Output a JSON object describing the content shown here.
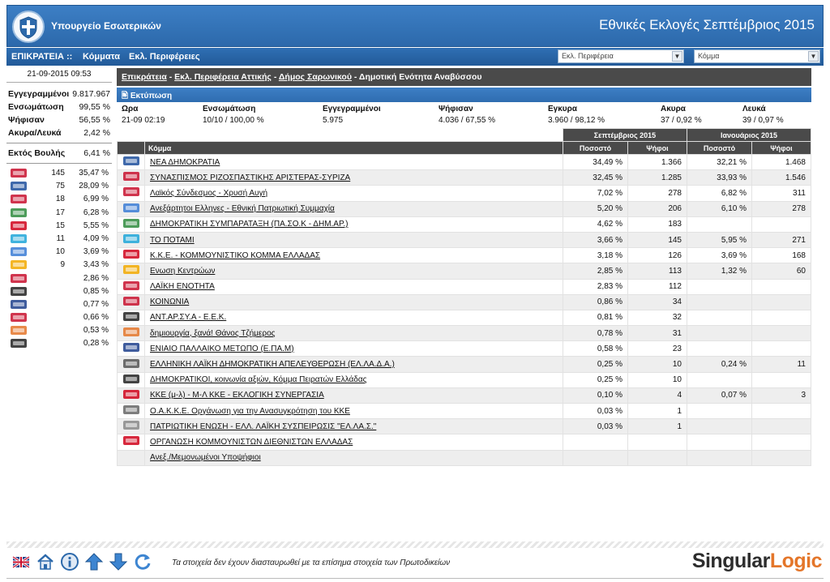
{
  "header": {
    "ministry": "Υπουργείο Εσωτερικών",
    "title": "Εθνικές Εκλογές Σεπτέμβριος 2015"
  },
  "nav": {
    "items": [
      "ΕΠΙΚΡΑΤΕΙΑ ::",
      "Κόμματα",
      "Εκλ. Περιφέρειες"
    ],
    "select_region": "Εκλ. Περιφέρεια",
    "select_party": "Κόμμα"
  },
  "left": {
    "datetime": "21-09-2015 09:53",
    "stats": [
      {
        "label": "Εγγεγραμμένοι",
        "value": "9.817.967"
      },
      {
        "label": "Ενσωμάτωση",
        "value": "99,55 %"
      },
      {
        "label": "Ψήφισαν",
        "value": "56,55 %"
      },
      {
        "label": "Ακυρα/Λευκά",
        "value": "2,42 %"
      }
    ],
    "outside": {
      "label": "Εκτός Βουλής",
      "value": "6,41 %"
    },
    "seats": [
      {
        "icon": "syriza-logo-icon",
        "seats": "145",
        "pct": "35,47 %",
        "color": "#c8102e"
      },
      {
        "icon": "nd-logo-icon",
        "seats": "75",
        "pct": "28,09 %",
        "color": "#1d4f9c"
      },
      {
        "icon": "xa-logo-icon",
        "seats": "18",
        "pct": "6,99 %",
        "color": "#c8102e"
      },
      {
        "icon": "dimar-pasok-logo-icon",
        "seats": "17",
        "pct": "6,28 %",
        "color": "#2e8b3d"
      },
      {
        "icon": "kke-logo-icon",
        "seats": "15",
        "pct": "5,55 %",
        "color": "#d0021b"
      },
      {
        "icon": "potami-logo-icon",
        "seats": "11",
        "pct": "4,09 %",
        "color": "#1fa6d8"
      },
      {
        "icon": "anel-logo-icon",
        "seats": "10",
        "pct": "3,69 %",
        "color": "#3a7bd5"
      },
      {
        "icon": "enosi-kentroon-logo-icon",
        "seats": "9",
        "pct": "3,43 %",
        "color": "#f2a900"
      },
      {
        "icon": "laiki-enotita-logo-icon",
        "seats": "",
        "pct": "2,86 %",
        "color": "#c8102e"
      },
      {
        "icon": "antarsya-logo-icon",
        "seats": "",
        "pct": "0,85 %",
        "color": "#222222"
      },
      {
        "icon": "epam-logo-icon",
        "seats": "",
        "pct": "0,77 %",
        "color": "#1d3f8c"
      },
      {
        "icon": "koinonia-logo-icon",
        "seats": "",
        "pct": "0,66 %",
        "color": "#c8102e"
      },
      {
        "icon": "dimiourgia-logo-icon",
        "seats": "",
        "pct": "0,53 %",
        "color": "#e4762a"
      },
      {
        "icon": "dimokratikoi-logo-icon",
        "seats": "",
        "pct": "0,28 %",
        "color": "#222222"
      }
    ]
  },
  "main": {
    "breadcrumb": {
      "l1": "Επικράτεια",
      "l2": "Εκλ. Περιφέρεια Αττικής",
      "l3": "Δήμος Σαρωνικού",
      "current": "Δημοτική Ενότητα Αναβύσσου"
    },
    "print": "Εκτύπωση",
    "summary": {
      "headers": [
        "Ωρα",
        "Ενσωμάτωση",
        "Εγγεγραμμένοι",
        "Ψήφισαν",
        "Εγκυρα",
        "Ακυρα",
        "Λευκά"
      ],
      "values": [
        "21-09 02:19",
        "10/10 / 100,00 %",
        "5.975",
        "4.036 / 67,55 %",
        "3.960 / 98,12 %",
        "37 / 0,92 %",
        "39 / 0,97 %"
      ]
    },
    "table": {
      "group_sep": "Σεπτέμβριος 2015",
      "group_jan": "Ιανουάριος 2015",
      "col_party": "Κόμμα",
      "col_pct": "Ποσοστό",
      "col_votes": "Ψήφοι",
      "rows": [
        {
          "icon": "nd-logo-icon",
          "color": "#1d4f9c",
          "name": "ΝΕΑ ΔΗΜΟΚΡΑΤΙΑ",
          "sep_pct": "34,49 %",
          "sep_votes": "1.366",
          "jan_pct": "32,21 %",
          "jan_votes": "1.468"
        },
        {
          "icon": "syriza-logo-icon",
          "color": "#c8102e",
          "name": "ΣΥΝΑΣΠΙΣΜΟΣ ΡΙΖΟΣΠΑΣΤΙΚΗΣ ΑΡΙΣΤΕΡΑΣ-ΣΥΡΙΖΑ",
          "sep_pct": "32,45 %",
          "sep_votes": "1.285",
          "jan_pct": "33,93 %",
          "jan_votes": "1.546"
        },
        {
          "icon": "xa-logo-icon",
          "color": "#c8102e",
          "name": "Λαϊκός Σύνδεσμος - Χρυσή Αυγή",
          "sep_pct": "7,02 %",
          "sep_votes": "278",
          "jan_pct": "6,82 %",
          "jan_votes": "311"
        },
        {
          "icon": "anel-logo-icon",
          "color": "#3a7bd5",
          "name": "Ανεξάρτητοι Ελληνες - Εθνική Πατριωτική Συμμαχία",
          "sep_pct": "5,20 %",
          "sep_votes": "206",
          "jan_pct": "6,10 %",
          "jan_votes": "278"
        },
        {
          "icon": "dimar-pasok-logo-icon",
          "color": "#2e8b3d",
          "name": "ΔΗΜΟΚΡΑΤΙΚΗ ΣΥΜΠΑΡΑΤΑΞΗ (ΠΑ.ΣΟ.Κ - ΔΗΜ.ΑΡ.)",
          "sep_pct": "4,62 %",
          "sep_votes": "183",
          "jan_pct": "",
          "jan_votes": ""
        },
        {
          "icon": "potami-logo-icon",
          "color": "#1fa6d8",
          "name": "ΤΟ ΠΟΤΑΜΙ",
          "sep_pct": "3,66 %",
          "sep_votes": "145",
          "jan_pct": "5,95 %",
          "jan_votes": "271"
        },
        {
          "icon": "kke-logo-icon",
          "color": "#d0021b",
          "name": "Κ.Κ.Ε. - ΚΟΜΜΟΥΝΙΣΤΙΚΟ ΚΟΜΜΑ ΕΛΛΑΔΑΣ",
          "sep_pct": "3,18 %",
          "sep_votes": "126",
          "jan_pct": "3,69 %",
          "jan_votes": "168"
        },
        {
          "icon": "enosi-kentroon-logo-icon",
          "color": "#f2a900",
          "name": "Ενωση Κεντρώων",
          "sep_pct": "2,85 %",
          "sep_votes": "113",
          "jan_pct": "1,32 %",
          "jan_votes": "60"
        },
        {
          "icon": "laiki-enotita-logo-icon",
          "color": "#c8102e",
          "name": "ΛΑΪΚΗ ΕΝΟΤΗΤΑ",
          "sep_pct": "2,83 %",
          "sep_votes": "112",
          "jan_pct": "",
          "jan_votes": ""
        },
        {
          "icon": "koinonia-logo-icon",
          "color": "#c8102e",
          "name": "ΚΟΙΝΩΝΙΑ",
          "sep_pct": "0,86 %",
          "sep_votes": "34",
          "jan_pct": "",
          "jan_votes": ""
        },
        {
          "icon": "antarsya-logo-icon",
          "color": "#222222",
          "name": "ΑΝΤ.ΑΡ.ΣΥ.Α - Ε.Ε.Κ.",
          "sep_pct": "0,81 %",
          "sep_votes": "32",
          "jan_pct": "",
          "jan_votes": ""
        },
        {
          "icon": "dimiourgia-logo-icon",
          "color": "#e4762a",
          "name": "δημιουργία, ξανά! Θάνος Τζήμερος",
          "sep_pct": "0,78 %",
          "sep_votes": "31",
          "jan_pct": "",
          "jan_votes": ""
        },
        {
          "icon": "epam-logo-icon",
          "color": "#1d3f8c",
          "name": "ΕΝΙΑΙΟ ΠΑΛΛΑΙΚΟ ΜΕΤΩΠΟ (Ε.ΠΑ.Μ)",
          "sep_pct": "0,58 %",
          "sep_votes": "23",
          "jan_pct": "",
          "jan_votes": ""
        },
        {
          "icon": "elada-logo-icon",
          "color": "#555555",
          "name": "ΕΛΛΗΝΙΚΗ ΛΑΪΚΗ ΔΗΜΟΚΡΑΤΙΚΗ ΑΠΕΛΕΥΘΕΡΩΣΗ (ΕΛ.ΛΑ.Δ.Α.)",
          "sep_pct": "0,25 %",
          "sep_votes": "10",
          "jan_pct": "0,24 %",
          "jan_votes": "11"
        },
        {
          "icon": "dimokratikoi-logo-icon",
          "color": "#222222",
          "name": "ΔΗΜΟΚΡΑΤΙΚΟΙ, κοινωνία αξιών, Κόμμα Πειρατών Ελλάδας",
          "sep_pct": "0,25 %",
          "sep_votes": "10",
          "jan_pct": "",
          "jan_votes": ""
        },
        {
          "icon": "kke-ml-logo-icon",
          "color": "#d0021b",
          "name": "ΚΚΕ (μ-λ) - Μ-Λ ΚΚΕ - ΕΚΛΟΓΙΚΗ ΣΥΝΕΡΓΑΣΙΑ",
          "sep_pct": "0,10 %",
          "sep_votes": "4",
          "jan_pct": "0,07 %",
          "jan_votes": "3"
        },
        {
          "icon": "oakke-logo-icon",
          "color": "#666666",
          "name": "Ο.Α.Κ.Κ.Ε. Οργάνωση για την Ανασυγκρότηση του ΚΚΕ",
          "sep_pct": "0,03 %",
          "sep_votes": "1",
          "jan_pct": "",
          "jan_votes": ""
        },
        {
          "icon": "patriotiki-enosi-logo-icon",
          "color": "#888888",
          "name": "ΠΑΤΡΙΩΤΙΚΗ ΕΝΩΣΗ - ΕΛΛ. ΛΑΪΚΗ ΣΥΣΠΕΙΡΩΣΙΣ \"ΕΛ.ΛΑ.Σ.\"",
          "sep_pct": "0,03 %",
          "sep_votes": "1",
          "jan_pct": "",
          "jan_votes": ""
        },
        {
          "icon": "okde-logo-icon",
          "color": "#d0021b",
          "name": "ΟΡΓΑΝΩΣΗ ΚΟΜΜΟΥΝΙΣΤΩΝ ΔΙΕΘΝΙΣΤΩΝ ΕΛΛΑΔΑΣ",
          "sep_pct": "",
          "sep_votes": "",
          "jan_pct": "",
          "jan_votes": ""
        },
        {
          "icon": "",
          "color": "#ffffff",
          "name": "Ανεξ./Μεμονωμένοι Υποψήφιοι",
          "sep_pct": "",
          "sep_votes": "",
          "jan_pct": "",
          "jan_votes": ""
        }
      ]
    }
  },
  "footer": {
    "icons": [
      "uk-flag-icon",
      "home-icon",
      "info-icon",
      "arrow-up-icon",
      "arrow-down-icon",
      "refresh-icon"
    ],
    "note": "Τα στοιχεία δεν έχουν διασταυρωθεί με τα επίσημα στοιχεία των Πρωτοδικείων",
    "brand_part1": "Singular",
    "brand_part2": "Logic"
  }
}
